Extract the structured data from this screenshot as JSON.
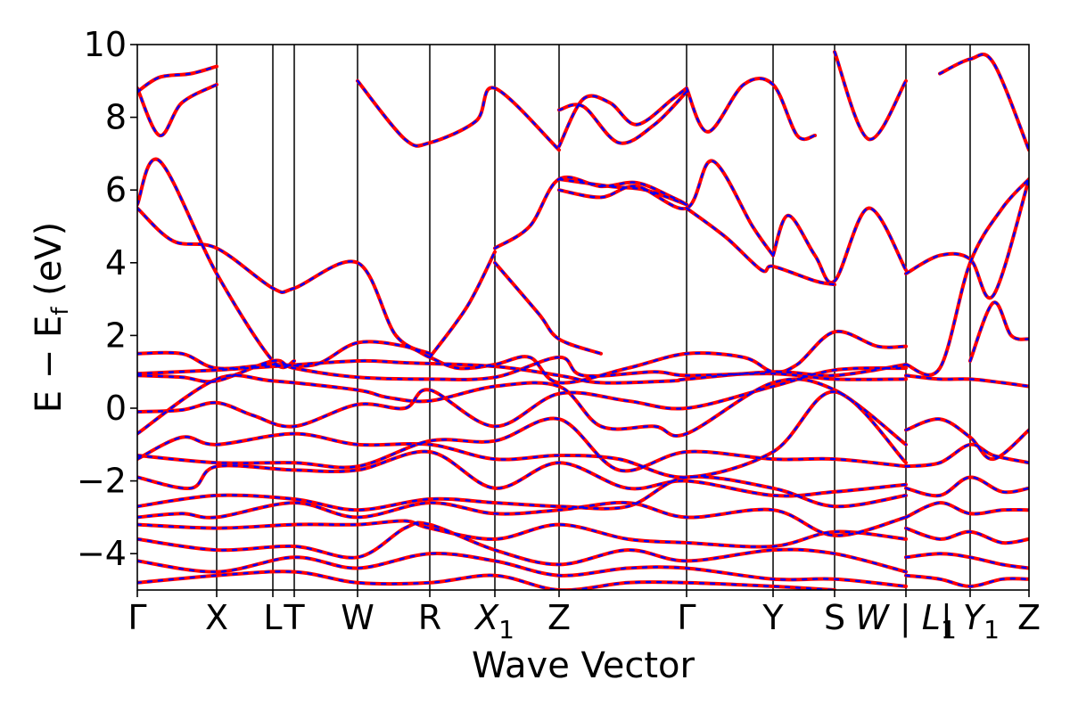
{
  "chart_data": {
    "type": "line",
    "title": "",
    "xlabel": "Wave Vector",
    "ylabel_parts": [
      "E",
      " − ",
      "E",
      "f",
      " (eV)"
    ],
    "ylim": [
      -5,
      10
    ],
    "yticks": [
      -4,
      -2,
      0,
      2,
      4,
      6,
      8,
      10
    ],
    "ytick_labels": [
      "−4",
      "−2",
      "0",
      "2",
      "4",
      "6",
      "8",
      "10"
    ],
    "kpath_xlim": [
      0,
      1000
    ],
    "kpoints": [
      {
        "k": 0,
        "label": "Γ"
      },
      {
        "k": 89,
        "label": "X"
      },
      {
        "k": 152,
        "label": "L"
      },
      {
        "k": 176,
        "label": "T"
      },
      {
        "k": 247,
        "label": "W"
      },
      {
        "k": 328,
        "label": "R"
      },
      {
        "k": 401,
        "label": "X",
        "sub": "1"
      },
      {
        "k": 473,
        "label": "Z"
      },
      {
        "k": 616,
        "label": "Γ"
      },
      {
        "k": 713,
        "label": "Y"
      },
      {
        "k": 782,
        "label": "S"
      },
      {
        "k": 862,
        "label": "W | L",
        "sub": "1"
      },
      {
        "k": 934,
        "label": "| Y",
        "sub": "1"
      },
      {
        "k": 1000,
        "label": "Z"
      }
    ],
    "legend": "none",
    "grid": false,
    "series_styles": [
      {
        "style": "solid",
        "color": "#ff0000"
      },
      {
        "style": "dashed",
        "color": "#0000ff"
      }
    ],
    "bands": [
      [
        [
          0,
          8.8
        ],
        [
          25,
          7.5
        ],
        [
          50,
          8.4
        ],
        [
          89,
          8.9
        ]
      ],
      [
        [
          0,
          8.7
        ],
        [
          25,
          9.1
        ],
        [
          60,
          9.2
        ],
        [
          89,
          9.4
        ]
      ],
      [
        [
          0,
          5.6
        ],
        [
          25,
          6.8
        ],
        [
          89,
          3.7
        ],
        [
          152,
          1.3
        ],
        [
          176,
          1.3
        ]
      ],
      [
        [
          0,
          5.5
        ],
        [
          40,
          4.6
        ],
        [
          89,
          4.4
        ],
        [
          152,
          3.3
        ],
        [
          176,
          3.3
        ],
        [
          247,
          4.0
        ],
        [
          290,
          2.0
        ],
        [
          328,
          1.5
        ]
      ],
      [
        [
          247,
          9.0
        ],
        [
          300,
          7.4
        ],
        [
          328,
          7.3
        ],
        [
          380,
          7.9
        ],
        [
          401,
          8.8
        ],
        [
          473,
          7.1
        ]
      ],
      [
        [
          401,
          4.4
        ],
        [
          440,
          5.0
        ],
        [
          473,
          6.3
        ],
        [
          520,
          6.1
        ],
        [
          560,
          6.2
        ],
        [
          600,
          5.8
        ],
        [
          616,
          5.6
        ]
      ],
      [
        [
          401,
          4.0
        ],
        [
          450,
          2.6
        ],
        [
          473,
          1.9
        ],
        [
          520,
          1.5
        ]
      ],
      [
        [
          328,
          1.4
        ],
        [
          370,
          2.8
        ],
        [
          401,
          4.3
        ]
      ],
      [
        [
          473,
          6.0
        ],
        [
          520,
          5.8
        ],
        [
          560,
          6.1
        ],
        [
          616,
          5.5
        ],
        [
          645,
          6.8
        ],
        [
          690,
          5.0
        ],
        [
          713,
          4.2
        ]
      ],
      [
        [
          473,
          6.3
        ],
        [
          530,
          6.1
        ],
        [
          570,
          6.0
        ],
        [
          616,
          5.6
        ]
      ],
      [
        [
          473,
          7.2
        ],
        [
          500,
          8.5
        ],
        [
          530,
          8.4
        ],
        [
          560,
          7.8
        ],
        [
          600,
          8.5
        ],
        [
          616,
          8.8
        ]
      ],
      [
        [
          473,
          8.2
        ],
        [
          500,
          8.3
        ],
        [
          540,
          7.3
        ],
        [
          580,
          7.8
        ],
        [
          616,
          8.7
        ]
      ],
      [
        [
          616,
          8.8
        ],
        [
          640,
          7.6
        ],
        [
          680,
          8.9
        ],
        [
          713,
          8.9
        ],
        [
          740,
          7.5
        ],
        [
          760,
          7.5
        ]
      ],
      [
        [
          616,
          5.5
        ],
        [
          660,
          4.7
        ],
        [
          700,
          3.8
        ],
        [
          713,
          3.9
        ],
        [
          760,
          3.5
        ],
        [
          782,
          3.4
        ]
      ],
      [
        [
          713,
          4.2
        ],
        [
          730,
          5.3
        ],
        [
          760,
          4.2
        ],
        [
          782,
          3.5
        ],
        [
          820,
          5.5
        ],
        [
          862,
          3.8
        ]
      ],
      [
        [
          782,
          9.8
        ],
        [
          820,
          7.4
        ],
        [
          862,
          9.0
        ]
      ],
      [
        [
          862,
          3.7
        ],
        [
          900,
          4.2
        ],
        [
          934,
          4.1
        ],
        [
          960,
          3.1
        ],
        [
          1000,
          6.3
        ]
      ],
      [
        [
          862,
          1.2
        ],
        [
          900,
          1.1
        ],
        [
          934,
          4.0
        ],
        [
          970,
          5.5
        ],
        [
          1000,
          6.3
        ]
      ],
      [
        [
          934,
          1.3
        ],
        [
          960,
          2.9
        ],
        [
          980,
          2.0
        ],
        [
          1000,
          1.9
        ]
      ],
      [
        [
          900,
          9.2
        ],
        [
          934,
          9.6
        ],
        [
          960,
          9.5
        ],
        [
          1000,
          7.1
        ]
      ],
      [
        [
          0,
          1.5
        ],
        [
          50,
          1.5
        ],
        [
          89,
          1.1
        ],
        [
          152,
          1.2
        ],
        [
          200,
          1.2
        ],
        [
          247,
          1.8
        ],
        [
          300,
          1.7
        ],
        [
          328,
          1.4
        ],
        [
          360,
          1.1
        ],
        [
          401,
          1.2
        ],
        [
          440,
          1.4
        ],
        [
          473,
          0.7
        ],
        [
          550,
          1.1
        ],
        [
          616,
          1.5
        ],
        [
          680,
          1.4
        ],
        [
          713,
          1.0
        ],
        [
          740,
          1.2
        ],
        [
          782,
          2.1
        ],
        [
          830,
          1.7
        ],
        [
          862,
          1.7
        ]
      ],
      [
        [
          0,
          0.95
        ],
        [
          89,
          1.05
        ],
        [
          152,
          1.15
        ],
        [
          247,
          1.3
        ],
        [
          300,
          1.25
        ],
        [
          401,
          1.15
        ],
        [
          473,
          0.9
        ],
        [
          520,
          0.7
        ],
        [
          600,
          0.75
        ],
        [
          616,
          0.8
        ],
        [
          713,
          1.0
        ],
        [
          782,
          0.9
        ],
        [
          862,
          1.2
        ]
      ],
      [
        [
          0,
          0.9
        ],
        [
          50,
          0.85
        ],
        [
          89,
          0.75
        ],
        [
          152,
          1.3
        ],
        [
          176,
          1.1
        ],
        [
          247,
          0.85
        ],
        [
          328,
          0.8
        ],
        [
          401,
          0.85
        ],
        [
          473,
          1.4
        ],
        [
          500,
          0.9
        ],
        [
          580,
          1.0
        ],
        [
          616,
          0.9
        ],
        [
          713,
          0.95
        ],
        [
          782,
          0.8
        ],
        [
          862,
          0.8
        ]
      ],
      [
        [
          0,
          -0.1
        ],
        [
          50,
          -0.05
        ],
        [
          89,
          0.15
        ],
        [
          130,
          -0.2
        ],
        [
          176,
          -0.5
        ],
        [
          247,
          0.1
        ],
        [
          300,
          0.0
        ],
        [
          328,
          0.5
        ],
        [
          401,
          -0.5
        ],
        [
          473,
          0.4
        ],
        [
          550,
          0.2
        ],
        [
          616,
          0.0
        ],
        [
          713,
          0.6
        ],
        [
          782,
          1.05
        ],
        [
          862,
          1.1
        ]
      ],
      [
        [
          0,
          -0.7
        ],
        [
          89,
          0.8
        ],
        [
          152,
          0.75
        ],
        [
          247,
          0.5
        ],
        [
          280,
          0.3
        ],
        [
          328,
          0.2
        ],
        [
          401,
          0.6
        ],
        [
          473,
          0.6
        ],
        [
          520,
          -0.5
        ],
        [
          580,
          -0.5
        ],
        [
          616,
          -0.7
        ],
        [
          713,
          0.7
        ],
        [
          782,
          0.5
        ],
        [
          862,
          -1.0
        ]
      ],
      [
        [
          0,
          -1.4
        ],
        [
          50,
          -0.8
        ],
        [
          89,
          -1.0
        ],
        [
          176,
          -0.7
        ],
        [
          247,
          -1.0
        ],
        [
          328,
          -1.0
        ],
        [
          401,
          -1.4
        ],
        [
          473,
          -1.3
        ],
        [
          540,
          -1.4
        ],
        [
          616,
          -1.9
        ],
        [
          713,
          -1.2
        ],
        [
          782,
          0.45
        ],
        [
          862,
          -1.5
        ]
      ],
      [
        [
          0,
          -1.3
        ],
        [
          89,
          -1.5
        ],
        [
          176,
          -1.5
        ],
        [
          247,
          -1.6
        ],
        [
          328,
          -0.9
        ],
        [
          401,
          -0.9
        ],
        [
          473,
          -0.3
        ],
        [
          540,
          -1.7
        ],
        [
          616,
          -1.2
        ],
        [
          713,
          -1.4
        ],
        [
          782,
          -1.4
        ],
        [
          862,
          -1.6
        ]
      ],
      [
        [
          0,
          -1.9
        ],
        [
          60,
          -2.2
        ],
        [
          89,
          -1.6
        ],
        [
          176,
          -1.7
        ],
        [
          247,
          -1.7
        ],
        [
          328,
          -1.2
        ],
        [
          401,
          -2.2
        ],
        [
          473,
          -1.5
        ],
        [
          550,
          -2.2
        ],
        [
          616,
          -2.0
        ],
        [
          713,
          -2.4
        ],
        [
          782,
          -2.3
        ],
        [
          862,
          -2.1
        ]
      ],
      [
        [
          0,
          -2.7
        ],
        [
          89,
          -2.4
        ],
        [
          176,
          -2.5
        ],
        [
          247,
          -2.8
        ],
        [
          328,
          -2.5
        ],
        [
          401,
          -2.6
        ],
        [
          473,
          -2.7
        ],
        [
          550,
          -2.7
        ],
        [
          616,
          -1.9
        ],
        [
          713,
          -2.2
        ],
        [
          782,
          -2.7
        ],
        [
          862,
          -2.4
        ]
      ],
      [
        [
          0,
          -3.0
        ],
        [
          50,
          -2.9
        ],
        [
          89,
          -3.0
        ],
        [
          176,
          -2.6
        ],
        [
          247,
          -3.0
        ],
        [
          328,
          -2.6
        ],
        [
          401,
          -2.9
        ],
        [
          473,
          -2.8
        ],
        [
          550,
          -2.6
        ],
        [
          616,
          -3.0
        ],
        [
          713,
          -2.8
        ],
        [
          782,
          -3.5
        ],
        [
          862,
          -3.0
        ]
      ],
      [
        [
          0,
          -3.2
        ],
        [
          89,
          -3.3
        ],
        [
          176,
          -3.2
        ],
        [
          247,
          -3.2
        ],
        [
          300,
          -3.1
        ],
        [
          328,
          -3.3
        ],
        [
          401,
          -3.6
        ],
        [
          473,
          -3.2
        ],
        [
          550,
          -3.6
        ],
        [
          616,
          -3.7
        ],
        [
          713,
          -3.8
        ],
        [
          782,
          -3.4
        ],
        [
          862,
          -3.6
        ]
      ],
      [
        [
          0,
          -3.6
        ],
        [
          89,
          -3.9
        ],
        [
          176,
          -3.8
        ],
        [
          247,
          -4.1
        ],
        [
          300,
          -3.3
        ],
        [
          328,
          -3.2
        ],
        [
          401,
          -3.9
        ],
        [
          473,
          -4.3
        ],
        [
          550,
          -3.9
        ],
        [
          616,
          -4.2
        ],
        [
          713,
          -3.9
        ],
        [
          782,
          -4.0
        ],
        [
          862,
          -4.5
        ]
      ],
      [
        [
          0,
          -4.2
        ],
        [
          89,
          -4.5
        ],
        [
          176,
          -4.1
        ],
        [
          247,
          -4.4
        ],
        [
          328,
          -4.0
        ],
        [
          401,
          -4.2
        ],
        [
          473,
          -4.6
        ],
        [
          550,
          -4.4
        ],
        [
          616,
          -4.4
        ],
        [
          713,
          -4.7
        ],
        [
          782,
          -4.7
        ],
        [
          862,
          -4.9
        ]
      ],
      [
        [
          0,
          -4.8
        ],
        [
          89,
          -4.6
        ],
        [
          176,
          -4.5
        ],
        [
          247,
          -4.8
        ],
        [
          328,
          -4.8
        ],
        [
          401,
          -4.6
        ],
        [
          473,
          -5.0
        ],
        [
          550,
          -4.8
        ],
        [
          616,
          -4.8
        ],
        [
          713,
          -4.9
        ],
        [
          782,
          -5.0
        ]
      ],
      [
        [
          862,
          -0.6
        ],
        [
          900,
          -0.3
        ],
        [
          934,
          -0.8
        ],
        [
          960,
          -1.4
        ],
        [
          1000,
          -0.6
        ]
      ],
      [
        [
          862,
          0.9
        ],
        [
          900,
          0.8
        ],
        [
          934,
          0.8
        ],
        [
          970,
          0.7
        ],
        [
          1000,
          0.6
        ]
      ],
      [
        [
          862,
          -1.6
        ],
        [
          900,
          -1.5
        ],
        [
          934,
          -1.0
        ],
        [
          960,
          -1.3
        ],
        [
          1000,
          -1.5
        ]
      ],
      [
        [
          862,
          -2.2
        ],
        [
          900,
          -2.4
        ],
        [
          934,
          -1.9
        ],
        [
          970,
          -2.3
        ],
        [
          1000,
          -2.2
        ]
      ],
      [
        [
          862,
          -3.0
        ],
        [
          900,
          -2.6
        ],
        [
          934,
          -2.9
        ],
        [
          970,
          -2.8
        ],
        [
          1000,
          -2.8
        ]
      ],
      [
        [
          862,
          -3.3
        ],
        [
          900,
          -3.6
        ],
        [
          934,
          -3.4
        ],
        [
          970,
          -3.7
        ],
        [
          1000,
          -3.6
        ]
      ],
      [
        [
          862,
          -4.1
        ],
        [
          900,
          -4.0
        ],
        [
          934,
          -4.1
        ],
        [
          970,
          -4.3
        ],
        [
          1000,
          -4.4
        ]
      ],
      [
        [
          862,
          -4.6
        ],
        [
          900,
          -4.7
        ],
        [
          934,
          -4.9
        ],
        [
          970,
          -4.7
        ],
        [
          1000,
          -4.7
        ]
      ]
    ]
  }
}
